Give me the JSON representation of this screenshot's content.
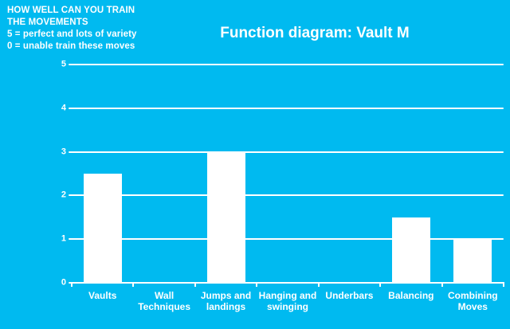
{
  "header": {
    "title": "Function diagram: Vault M",
    "note": "HOW WELL CAN YOU TRAIN\nTHE MOVEMENTS\n5 = perfect and lots of variety\n0 = unable train these moves"
  },
  "colors": {
    "background": "#00baf0",
    "foreground": "#ffffff",
    "bar": "#ffffff",
    "gridline": "#ffffff"
  },
  "chart_data": {
    "type": "bar",
    "title": "Function diagram: Vault M",
    "categories": [
      "Vaults",
      "Wall\nTechniques",
      "Jumps and\nlandings",
      "Hanging and\nswinging",
      "Underbars",
      "Balancing",
      "Combining\nMoves"
    ],
    "values": [
      2.5,
      0,
      3,
      0,
      0,
      1.5,
      1
    ],
    "xlabel": "",
    "ylabel": "",
    "ylim": [
      0,
      5
    ],
    "ytick_step": 1,
    "yticks": [
      0,
      1,
      2,
      3,
      4,
      5
    ],
    "grid": true,
    "legend": "none",
    "annotation": "5 = perfect and lots of variety, 0 = unable train these moves"
  }
}
